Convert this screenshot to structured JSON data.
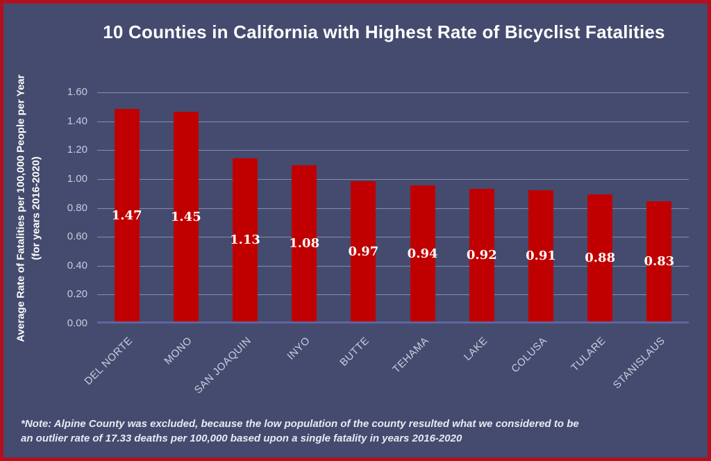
{
  "chart_data": {
    "type": "bar",
    "title": "10 Counties in California with Highest Rate of Bicyclist Fatalities",
    "categories": [
      "DEL NORTE",
      "MONO",
      "SAN JOAQUIN",
      "INYO",
      "BUTTE",
      "TEHAMA",
      "LAKE",
      "COLUSA",
      "TULARE",
      "STANISLAUS"
    ],
    "values": [
      1.47,
      1.45,
      1.13,
      1.08,
      0.97,
      0.94,
      0.92,
      0.91,
      0.88,
      0.83
    ],
    "value_labels": [
      "1.47",
      "1.45",
      "1.13",
      "1.08",
      "0.97",
      "0.94",
      "0.92",
      "0.91",
      "0.88",
      "0.83"
    ],
    "ylabel_line1": "Average Rate of Fatalities per 100,000 People per Year",
    "ylabel_line2": "(for years 2016-2020)",
    "xlabel": "",
    "y_ticks": [
      "0.00",
      "0.20",
      "0.40",
      "0.60",
      "0.80",
      "1.00",
      "1.20",
      "1.40",
      "1.60"
    ],
    "ylim": [
      0,
      1.6
    ],
    "grid": true,
    "legend_position": "none",
    "bar_color": "#c00000",
    "background_color": "#444b6e",
    "frame_border_color": "#b40f1c",
    "value_label_position": "inside-center"
  },
  "note": {
    "line1": "*Note: Alpine County was excluded, because the low population of the county resulted what we considered to be",
    "line2": "an outlier rate of 17.33 deaths per 100,000 based upon a single fatality in years 2016-2020"
  }
}
